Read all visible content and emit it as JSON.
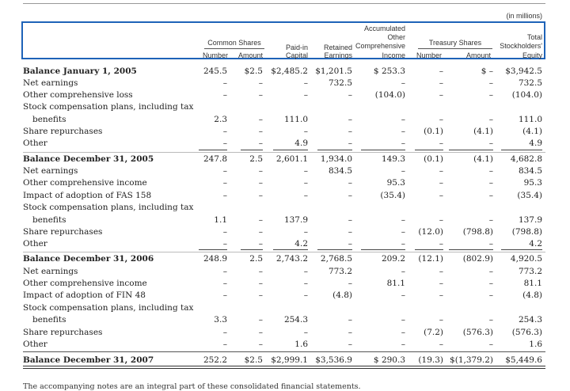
{
  "units_note": "(in millions)",
  "headers": {
    "common_shares": "Common Shares",
    "number": "Number",
    "amount": "Amount",
    "paid_in_1": "Paid-in",
    "paid_in_2": "Capital",
    "retained_1": "Retained",
    "retained_2": "Earnings",
    "aoci_1": "Accumulated",
    "aoci_2": "Other",
    "aoci_3": "Comprehensive",
    "aoci_4": "Income",
    "treasury_shares": "Treasury Shares",
    "treasury_number": "Number",
    "treasury_amount": "Amount",
    "total_1": "Total",
    "total_2": "Stockholders'",
    "total_3": "Equity"
  },
  "rows": [
    {
      "label": "Balance January 1, 2005",
      "bold": true,
      "cells": [
        "245.5",
        "$2.5",
        "$2,485.2",
        "$1,201.5",
        "$ 253.3",
        "–",
        "$            –",
        "$3,942.5"
      ]
    },
    {
      "label": "Net earnings",
      "cells": [
        "–",
        "–",
        "–",
        "732.5",
        "–",
        "–",
        "–",
        "732.5"
      ]
    },
    {
      "label": "Other comprehensive loss",
      "cells": [
        "–",
        "–",
        "–",
        "–",
        "(104.0)",
        "–",
        "–",
        "(104.0)"
      ]
    },
    {
      "label": "Stock compensation plans, including tax",
      "cells": [
        "",
        "",
        "",
        "",
        "",
        "",
        "",
        ""
      ]
    },
    {
      "label": "benefits",
      "indent": true,
      "cells": [
        "2.3",
        "–",
        "111.0",
        "–",
        "–",
        "–",
        "–",
        "111.0"
      ]
    },
    {
      "label": "Share repurchases",
      "cells": [
        "–",
        "–",
        "–",
        "–",
        "–",
        "(0.1)",
        "(4.1)",
        "(4.1)"
      ]
    },
    {
      "label": "Other",
      "cells": [
        "–",
        "–",
        "4.9",
        "–",
        "–",
        "–",
        "–",
        "4.9"
      ]
    },
    {
      "label": "Balance December 31, 2005",
      "bold": true,
      "cells": [
        "247.8",
        "2.5",
        "2,601.1",
        "1,934.0",
        "149.3",
        "(0.1)",
        "(4.1)",
        "4,682.8"
      ]
    },
    {
      "label": "Net earnings",
      "cells": [
        "–",
        "–",
        "–",
        "834.5",
        "–",
        "–",
        "–",
        "834.5"
      ]
    },
    {
      "label": "Other comprehensive income",
      "cells": [
        "–",
        "–",
        "–",
        "–",
        "95.3",
        "–",
        "–",
        "95.3"
      ]
    },
    {
      "label": "Impact of adoption of FAS 158",
      "cells": [
        "–",
        "–",
        "–",
        "–",
        "(35.4)",
        "–",
        "–",
        "(35.4)"
      ]
    },
    {
      "label": "Stock compensation plans, including tax",
      "cells": [
        "",
        "",
        "",
        "",
        "",
        "",
        "",
        ""
      ]
    },
    {
      "label": "benefits",
      "indent": true,
      "cells": [
        "1.1",
        "–",
        "137.9",
        "–",
        "–",
        "–",
        "–",
        "137.9"
      ]
    },
    {
      "label": "Share repurchases",
      "cells": [
        "–",
        "–",
        "–",
        "–",
        "–",
        "(12.0)",
        "(798.8)",
        "(798.8)"
      ]
    },
    {
      "label": "Other",
      "cells": [
        "–",
        "–",
        "4.2",
        "–",
        "–",
        "–",
        "–",
        "4.2"
      ]
    },
    {
      "label": "Balance December 31, 2006",
      "bold": true,
      "cells": [
        "248.9",
        "2.5",
        "2,743.2",
        "2,768.5",
        "209.2",
        "(12.1)",
        "(802.9)",
        "4,920.5"
      ]
    },
    {
      "label": "Net earnings",
      "cells": [
        "–",
        "–",
        "–",
        "773.2",
        "–",
        "–",
        "–",
        "773.2"
      ]
    },
    {
      "label": "Other comprehensive income",
      "cells": [
        "–",
        "–",
        "–",
        "–",
        "81.1",
        "–",
        "–",
        "81.1"
      ]
    },
    {
      "label": "Impact of adoption of FIN 48",
      "cells": [
        "–",
        "–",
        "–",
        "(4.8)",
        "–",
        "–",
        "–",
        "(4.8)"
      ]
    },
    {
      "label": "Stock compensation plans, including tax",
      "cells": [
        "",
        "",
        "",
        "",
        "",
        "",
        "",
        ""
      ]
    },
    {
      "label": "benefits",
      "indent": true,
      "cells": [
        "3.3",
        "–",
        "254.3",
        "–",
        "–",
        "–",
        "–",
        "254.3"
      ]
    },
    {
      "label": "Share repurchases",
      "cells": [
        "–",
        "–",
        "–",
        "–",
        "–",
        "(7.2)",
        "(576.3)",
        "(576.3)"
      ]
    },
    {
      "label": "Other",
      "cells": [
        "–",
        "–",
        "1.6",
        "–",
        "–",
        "–",
        "–",
        "1.6"
      ]
    },
    {
      "label": "Balance December 31, 2007",
      "bold": true,
      "cells": [
        "252.2",
        "$2.5",
        "$2,999.1",
        "$3,536.9",
        "$ 290.3",
        "(19.3)",
        "$(1,379.2)",
        "$5,449.6"
      ]
    }
  ],
  "footnote": "The accompanying notes are an integral part of these consolidated financial statements."
}
